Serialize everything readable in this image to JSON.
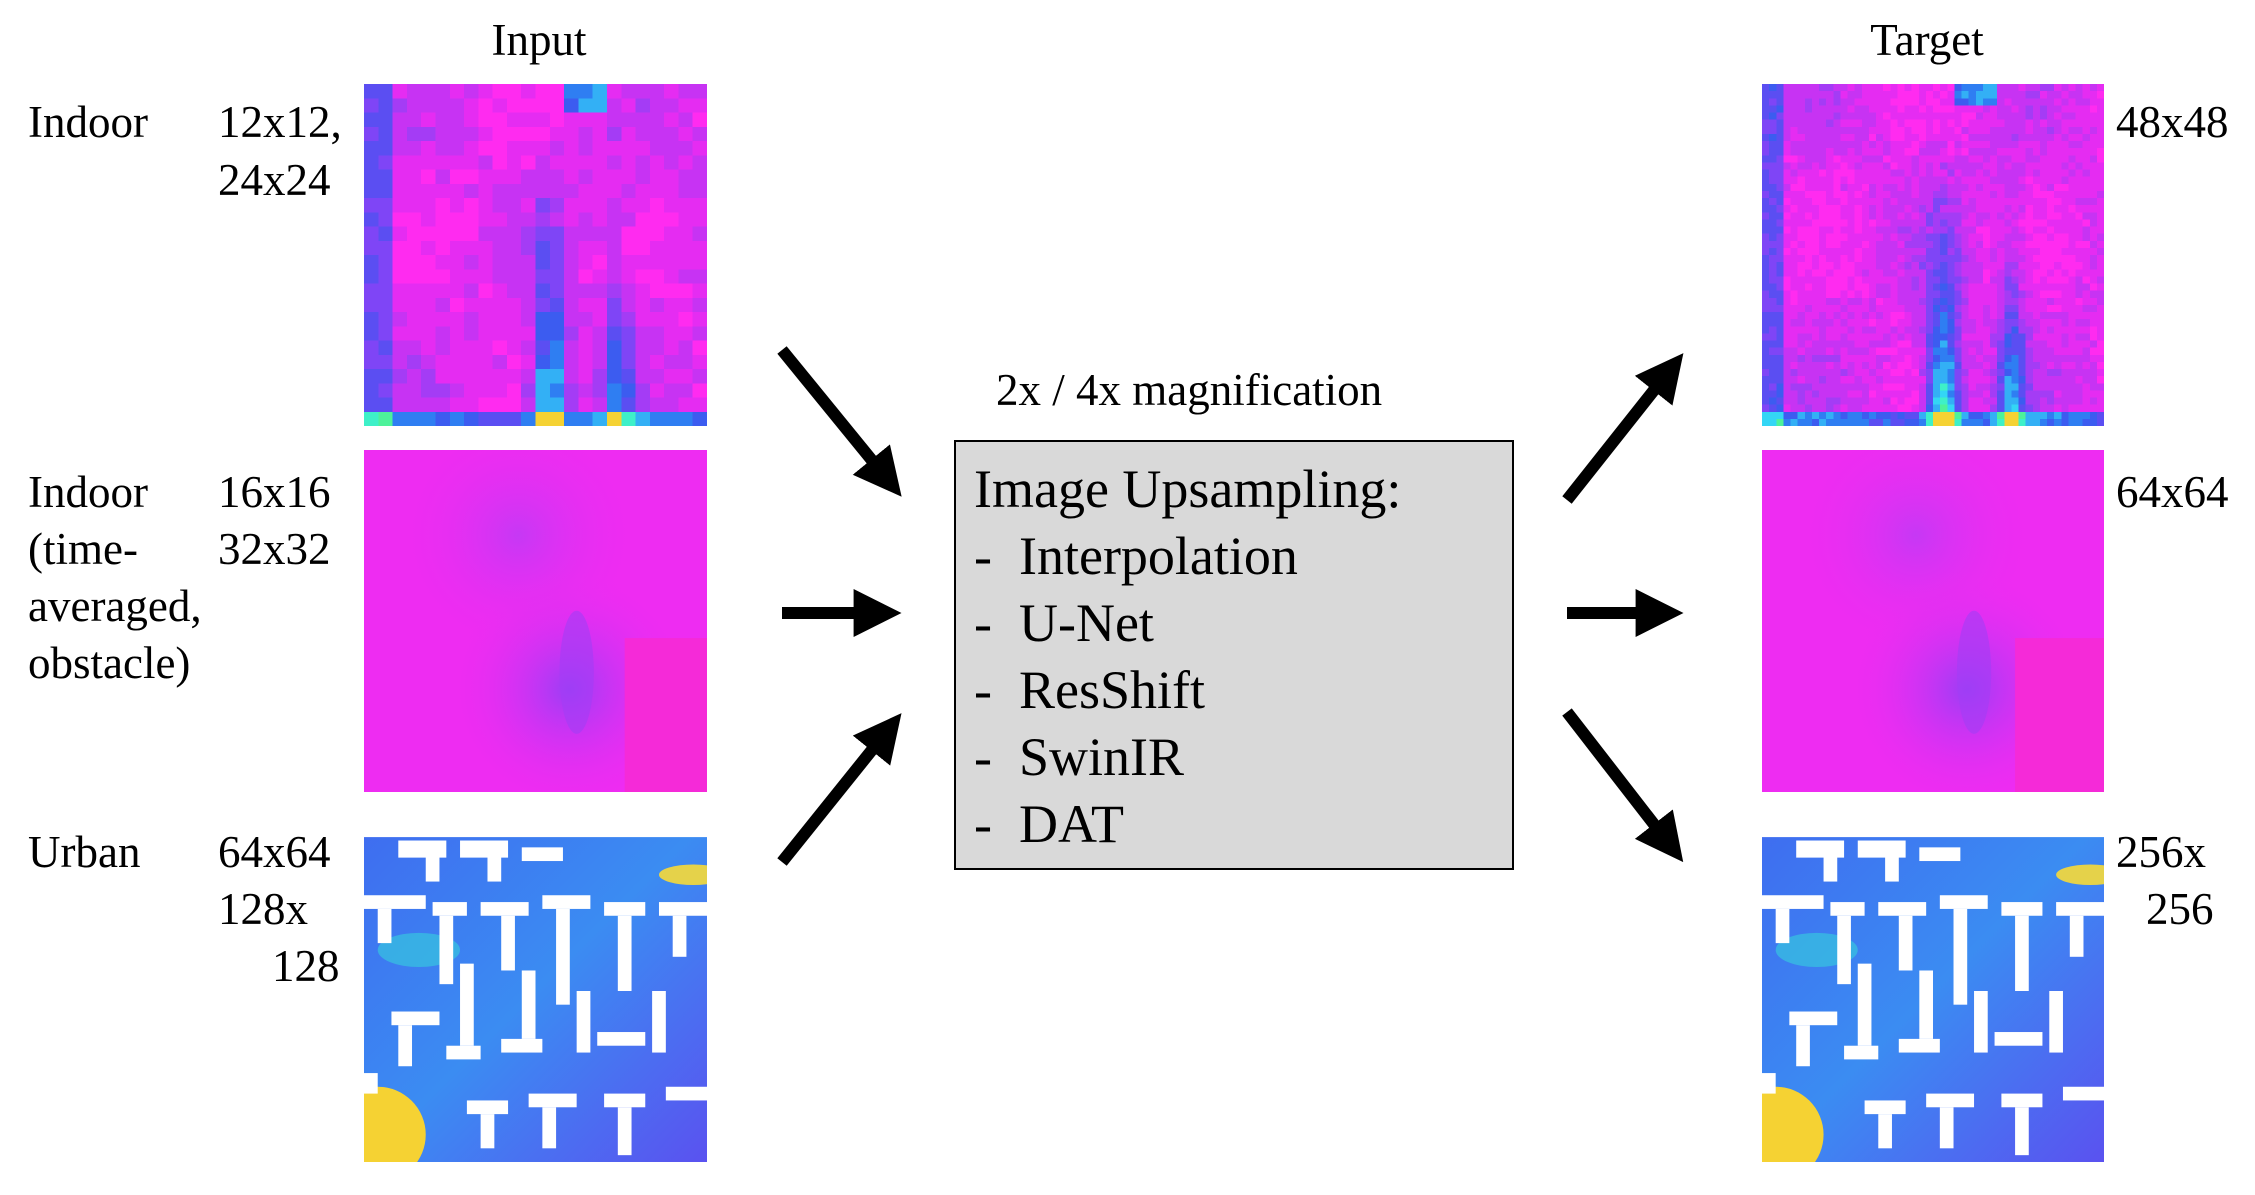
{
  "headers": {
    "input": "Input",
    "target": "Target"
  },
  "rows": [
    {
      "domain_lines": [
        "Indoor"
      ],
      "input_sizes": [
        "12x12,",
        "24x24"
      ],
      "target_size": [
        "48x48"
      ]
    },
    {
      "domain_lines": [
        "Indoor",
        "(time-",
        "averaged,",
        "obstacle)"
      ],
      "input_sizes": [
        "16x16",
        "32x32"
      ],
      "target_size": [
        "64x64"
      ]
    },
    {
      "domain_lines": [
        "Urban"
      ],
      "input_sizes": [
        "64x64",
        "128x",
        "128"
      ],
      "target_size": [
        "256x",
        "256"
      ]
    }
  ],
  "center": {
    "magnification_label": "2x / 4x magnification",
    "box_title": "Image Upsampling:",
    "methods": [
      "Interpolation",
      "U-Net",
      "ResShift",
      "SwinIR",
      "DAT"
    ]
  },
  "colors": {
    "magenta": "#ff2bf0",
    "purple": "#a43cf5",
    "blue": "#3c5cf0",
    "cyan": "#33d6f5",
    "green": "#4df29a",
    "yellow": "#f5d233",
    "box_fill": "#d9d9d9"
  }
}
